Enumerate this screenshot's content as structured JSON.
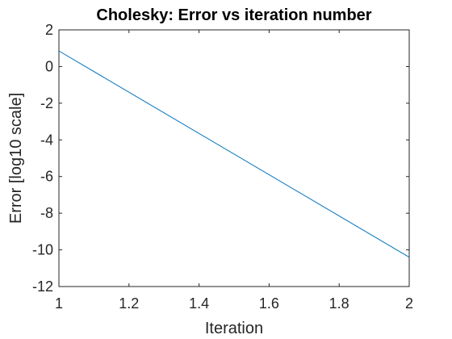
{
  "chart_data": {
    "type": "line",
    "title": "Cholesky: Error vs iteration number",
    "xlabel": "Iteration",
    "ylabel": "Error [log10 scale]",
    "xlim": [
      1,
      2
    ],
    "ylim": [
      -12,
      2
    ],
    "xticks": [
      1,
      1.2,
      1.4,
      1.6,
      1.8,
      2
    ],
    "xtick_labels": [
      "1",
      "1.2",
      "1.4",
      "1.6",
      "1.8",
      "2"
    ],
    "yticks": [
      2,
      0,
      -2,
      -4,
      -6,
      -8,
      -10,
      -12
    ],
    "ytick_labels": [
      "2",
      "0",
      "-2",
      "-4",
      "-6",
      "-8",
      "-10",
      "-12"
    ],
    "grid": false,
    "series": [
      {
        "x": [
          1,
          2
        ],
        "y": [
          0.85,
          -10.4
        ],
        "color": "#0072BD"
      }
    ]
  }
}
